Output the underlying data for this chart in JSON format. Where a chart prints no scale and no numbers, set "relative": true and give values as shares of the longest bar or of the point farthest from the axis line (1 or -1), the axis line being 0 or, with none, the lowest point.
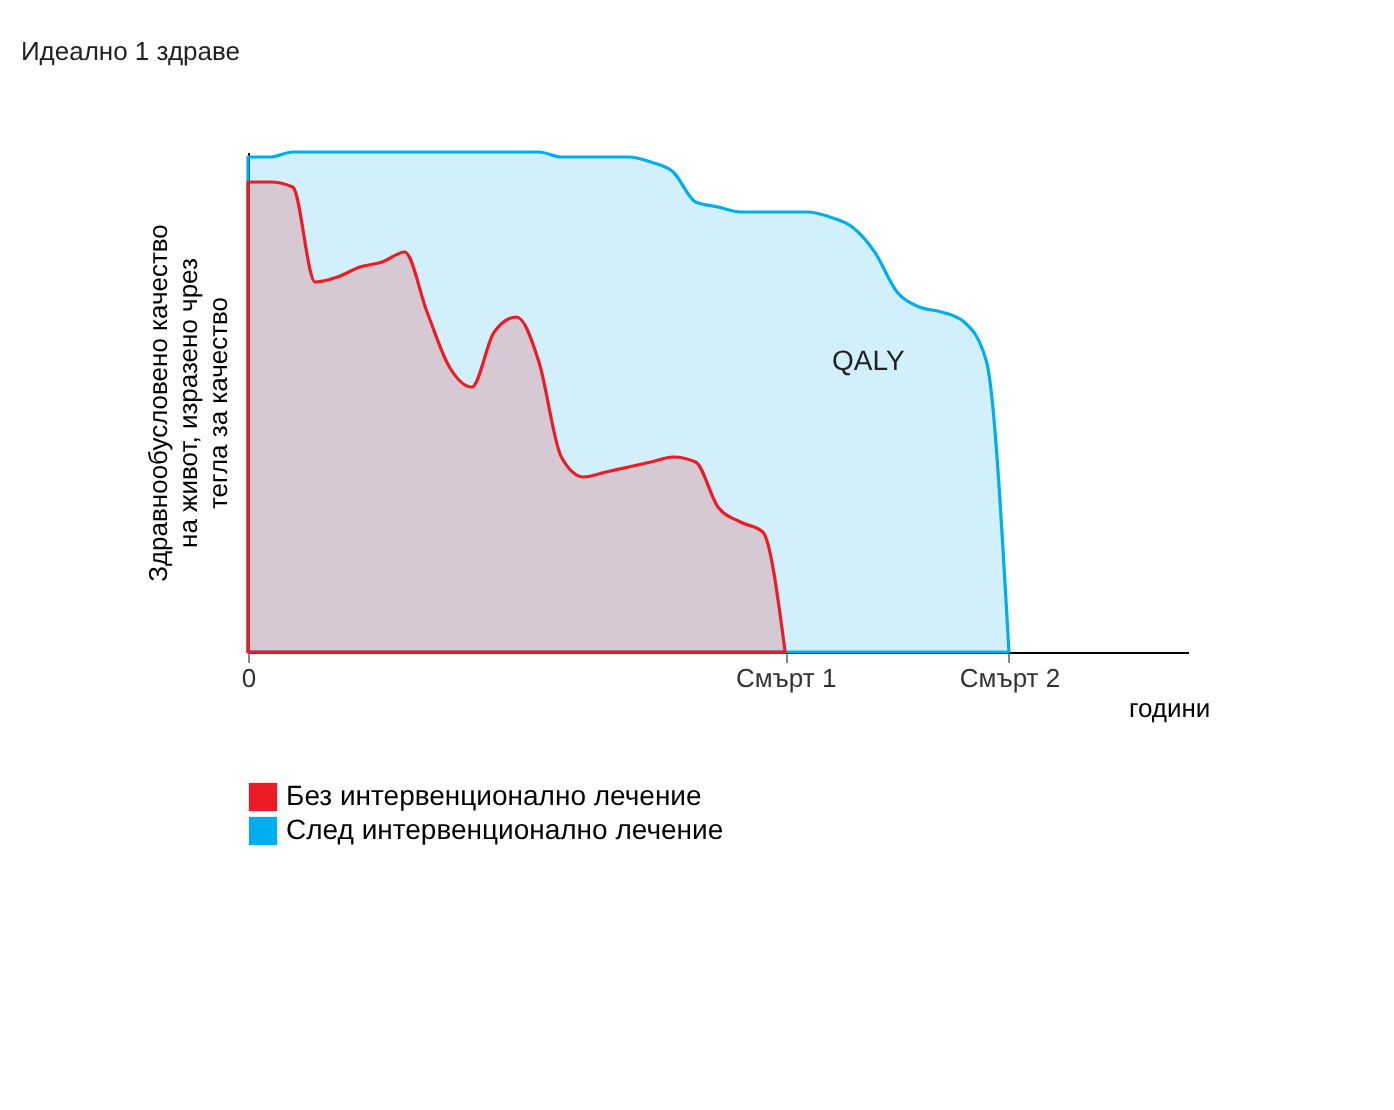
{
  "chart_data": {
    "type": "area",
    "relative": true,
    "xlabel": "години",
    "ylabel": "Здравнообусловено качество на живот, изразено чрез тегла за качество",
    "categories": [
      "0",
      null,
      null,
      null,
      null,
      null,
      null,
      null,
      null,
      null,
      null,
      null,
      null,
      null,
      null,
      null,
      null,
      null,
      null,
      null,
      null,
      null,
      null,
      null,
      "Смърт 1",
      null,
      null,
      null,
      null,
      null,
      null,
      null,
      null,
      null,
      "Смърт 2",
      null,
      null,
      null,
      null,
      null,
      null,
      null,
      null
    ],
    "grid": false,
    "legend": "bottom",
    "annotations": [
      "Идеално 1 здраве",
      "QALY"
    ],
    "series": [
      {
        "name": "След интервенционално лечение",
        "color": "#00aeef",
        "values": [
          0.99,
          0.99,
          1,
          1,
          1,
          1,
          1,
          1,
          1,
          1,
          1,
          1,
          1,
          1,
          0.99,
          0.99,
          0.99,
          0.99,
          0.98,
          0.96,
          0.9,
          0.89,
          0.88,
          0.88,
          0.88,
          0.88,
          0.87,
          0.85,
          0.8,
          0.72,
          0.69,
          0.68,
          0.66,
          0.58,
          0,
          null,
          null,
          null,
          null,
          null,
          null,
          null,
          null
        ]
      },
      {
        "name": "Без интервенционално лечение",
        "color": "#ed1c24",
        "values": [
          0.94,
          0.94,
          0.93,
          0.74,
          0.75,
          0.77,
          0.78,
          0.8,
          0.68,
          0.57,
          0.53,
          0.64,
          0.67,
          0.58,
          0.39,
          0.35,
          0.36,
          0.37,
          0.38,
          0.39,
          0.38,
          0.29,
          0.26,
          0.24,
          0,
          null,
          null,
          null,
          null,
          null,
          null,
          null,
          null,
          null,
          null,
          null,
          null,
          null,
          null,
          null,
          null,
          null,
          null
        ]
      }
    ]
  }
}
